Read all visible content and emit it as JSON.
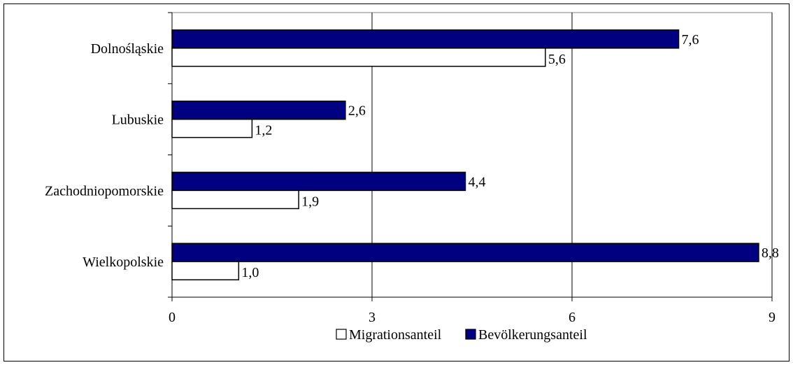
{
  "chart_data": {
    "type": "bar",
    "orientation": "horizontal",
    "categories": [
      "Dolnośląskie",
      "Lubuskie",
      "Zachodniopomorskie",
      "Wielkopolskie"
    ],
    "series": [
      {
        "name": "Migrationsanteil",
        "values": [
          5.6,
          1.2,
          1.9,
          1.0
        ],
        "labels": [
          "5,6",
          "1,2",
          "1,9",
          "1,0"
        ],
        "color": "#ffffff"
      },
      {
        "name": "Bevölkerungsanteil",
        "values": [
          7.6,
          2.6,
          4.4,
          8.8
        ],
        "labels": [
          "7,6",
          "2,6",
          "4,4",
          "8,8"
        ],
        "color": "#000080"
      }
    ],
    "xlim": [
      0,
      9
    ],
    "xticks": [
      0,
      3,
      6,
      9
    ],
    "xtick_labels": [
      "0",
      "3",
      "6",
      "9"
    ],
    "grid": "vertical",
    "legend": "bottom"
  }
}
